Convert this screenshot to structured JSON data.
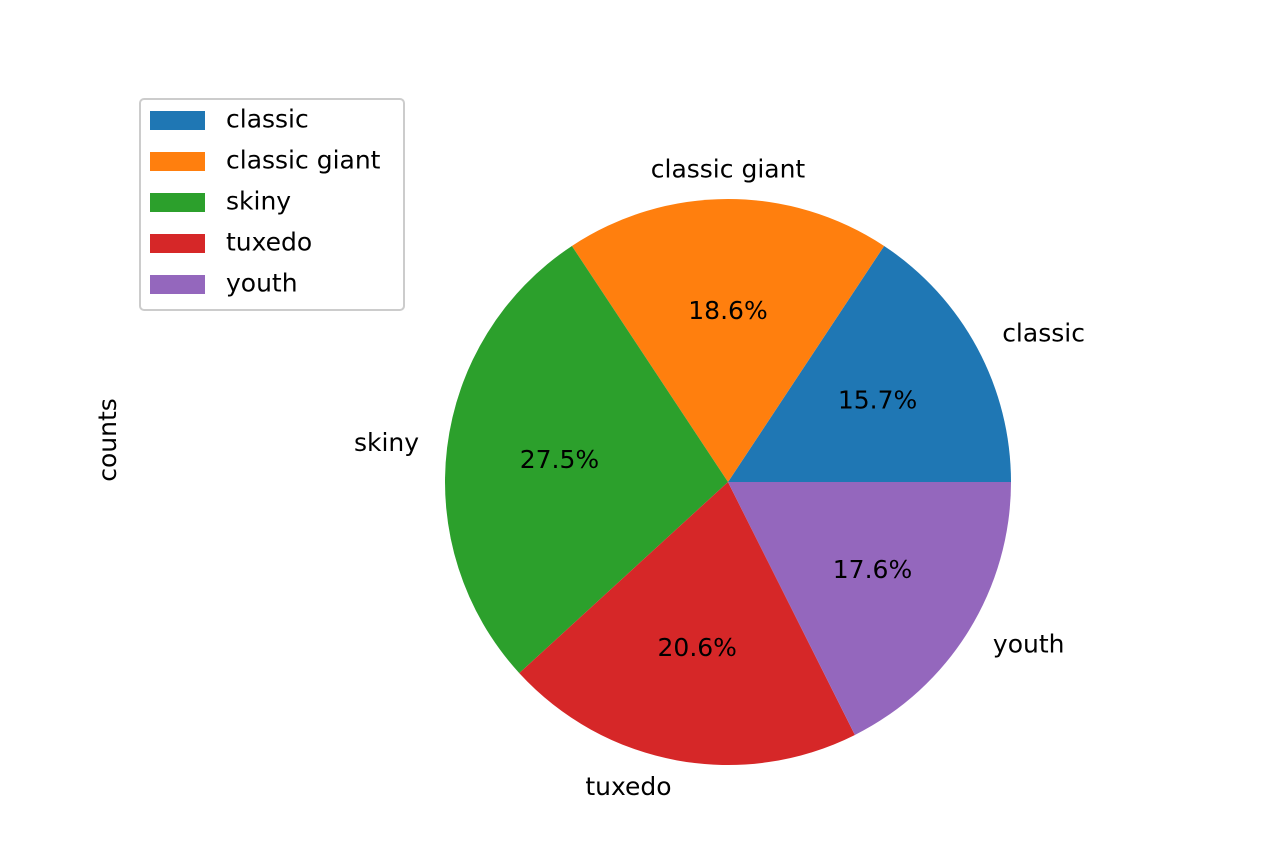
{
  "chart_data": {
    "type": "pie",
    "ylabel": "counts",
    "categories": [
      "classic",
      "classic giant",
      "skiny",
      "tuxedo",
      "youth"
    ],
    "values": [
      15.7,
      18.6,
      27.5,
      20.6,
      17.6
    ],
    "percent_labels": [
      "15.7%",
      "18.6%",
      "27.5%",
      "20.6%",
      "17.6%"
    ],
    "colors": [
      "#1f77b4",
      "#ff7f0e",
      "#2ca02c",
      "#d62728",
      "#9467bd"
    ],
    "start_angle_deg": 0,
    "direction": "counterclockwise",
    "legend": {
      "position": "upper-left",
      "entries": [
        "classic",
        "classic giant",
        "skiny",
        "tuxedo",
        "youth"
      ]
    }
  }
}
